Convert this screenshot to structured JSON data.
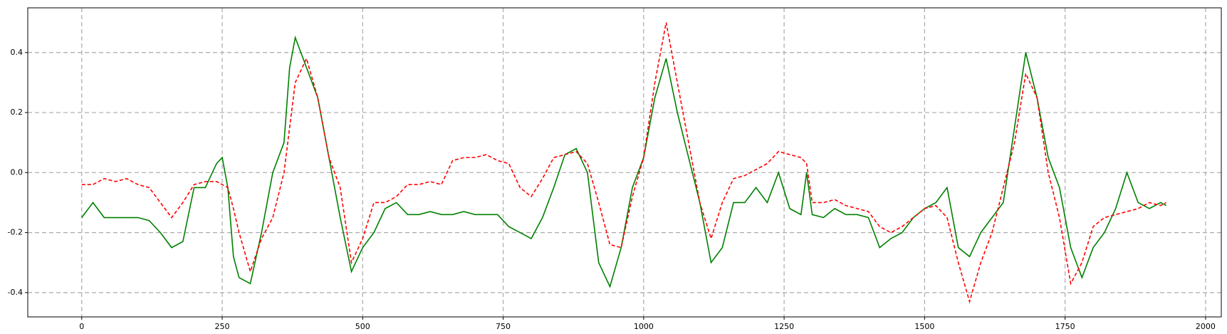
{
  "chart_data": {
    "type": "line",
    "x": [
      0,
      20,
      40,
      60,
      80,
      100,
      120,
      140,
      160,
      180,
      200,
      220,
      240,
      250,
      260,
      270,
      280,
      300,
      320,
      340,
      360,
      370,
      380,
      400,
      420,
      440,
      460,
      480,
      500,
      520,
      540,
      560,
      580,
      600,
      620,
      640,
      660,
      680,
      700,
      720,
      740,
      760,
      780,
      800,
      820,
      840,
      860,
      880,
      900,
      920,
      940,
      960,
      980,
      1000,
      1020,
      1040,
      1060,
      1080,
      1100,
      1120,
      1140,
      1160,
      1180,
      1200,
      1220,
      1240,
      1260,
      1280,
      1290,
      1300,
      1320,
      1340,
      1360,
      1380,
      1400,
      1420,
      1440,
      1460,
      1480,
      1500,
      1520,
      1540,
      1560,
      1580,
      1600,
      1620,
      1640,
      1660,
      1680,
      1700,
      1720,
      1740,
      1760,
      1780,
      1800,
      1820,
      1840,
      1860,
      1880,
      1900,
      1920,
      1930
    ],
    "series": [
      {
        "color": "#008000",
        "linestyle": "solid",
        "values": [
          -0.15,
          -0.1,
          -0.15,
          -0.15,
          -0.15,
          -0.15,
          -0.16,
          -0.2,
          -0.25,
          -0.23,
          -0.05,
          -0.05,
          0.03,
          0.05,
          -0.05,
          -0.28,
          -0.35,
          -0.37,
          -0.2,
          0.0,
          0.1,
          0.35,
          0.45,
          0.35,
          0.25,
          0.05,
          -0.15,
          -0.33,
          -0.25,
          -0.2,
          -0.12,
          -0.1,
          -0.14,
          -0.14,
          -0.13,
          -0.14,
          -0.14,
          -0.13,
          -0.14,
          -0.14,
          -0.14,
          -0.18,
          -0.2,
          -0.22,
          -0.15,
          -0.05,
          0.06,
          0.08,
          0.0,
          -0.3,
          -0.38,
          -0.25,
          -0.05,
          0.05,
          0.25,
          0.38,
          0.2,
          0.05,
          -0.1,
          -0.3,
          -0.25,
          -0.1,
          -0.1,
          -0.05,
          -0.1,
          0.0,
          -0.12,
          -0.14,
          0.0,
          -0.14,
          -0.15,
          -0.12,
          -0.14,
          -0.14,
          -0.15,
          -0.25,
          -0.22,
          -0.2,
          -0.15,
          -0.12,
          -0.1,
          -0.05,
          -0.25,
          -0.28,
          -0.2,
          -0.15,
          -0.1,
          0.15,
          0.4,
          0.25,
          0.05,
          -0.05,
          -0.25,
          -0.35,
          -0.25,
          -0.2,
          -0.12,
          0.0,
          -0.1,
          -0.12,
          -0.1,
          -0.11
        ]
      },
      {
        "color": "#ff0000",
        "linestyle": "dashed",
        "values": [
          -0.04,
          -0.04,
          -0.02,
          -0.03,
          -0.02,
          -0.04,
          -0.05,
          -0.1,
          -0.15,
          -0.1,
          -0.04,
          -0.03,
          -0.03,
          -0.04,
          -0.05,
          -0.12,
          -0.2,
          -0.33,
          -0.22,
          -0.15,
          0.0,
          0.15,
          0.3,
          0.38,
          0.25,
          0.05,
          -0.05,
          -0.3,
          -0.22,
          -0.1,
          -0.1,
          -0.08,
          -0.04,
          -0.04,
          -0.03,
          -0.04,
          0.04,
          0.05,
          0.05,
          0.06,
          0.04,
          0.03,
          -0.05,
          -0.08,
          -0.02,
          0.05,
          0.06,
          0.07,
          0.03,
          -0.1,
          -0.24,
          -0.25,
          -0.08,
          0.05,
          0.3,
          0.5,
          0.3,
          0.1,
          -0.1,
          -0.22,
          -0.1,
          -0.02,
          -0.01,
          0.01,
          0.03,
          0.07,
          0.06,
          0.05,
          0.03,
          -0.1,
          -0.1,
          -0.09,
          -0.11,
          -0.12,
          -0.13,
          -0.18,
          -0.2,
          -0.18,
          -0.15,
          -0.12,
          -0.11,
          -0.15,
          -0.3,
          -0.43,
          -0.3,
          -0.2,
          -0.05,
          0.1,
          0.33,
          0.25,
          0.0,
          -0.15,
          -0.37,
          -0.3,
          -0.18,
          -0.15,
          -0.14,
          -0.13,
          -0.12,
          -0.1,
          -0.11,
          -0.1
        ]
      }
    ],
    "xlim": [
      -96,
      2028
    ],
    "ylim": [
      -0.481,
      0.549
    ],
    "xticks": [
      0,
      250,
      500,
      750,
      1000,
      1250,
      1500,
      1750,
      2000
    ],
    "yticks": [
      -0.4,
      -0.2,
      {
        "value": 0,
        "label": "0.0"
      },
      0.2,
      0.4
    ],
    "grid": true
  }
}
